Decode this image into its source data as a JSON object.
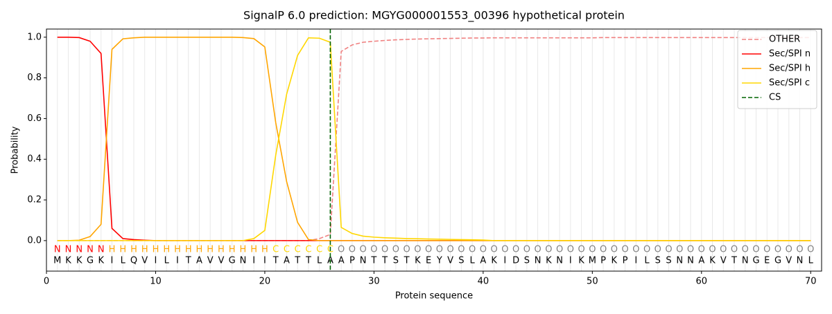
{
  "chart_data": {
    "type": "line",
    "title": "SignalP 6.0 prediction: MGYG000001553_00396 hypothetical protein",
    "xlabel": "Protein sequence",
    "ylabel": "Probability",
    "x": [
      1,
      2,
      3,
      4,
      5,
      6,
      7,
      8,
      9,
      10,
      11,
      12,
      13,
      14,
      15,
      16,
      17,
      18,
      19,
      20,
      21,
      22,
      23,
      24,
      25,
      26,
      27,
      28,
      29,
      30,
      31,
      32,
      33,
      34,
      35,
      36,
      37,
      38,
      39,
      40,
      41,
      42,
      43,
      44,
      45,
      46,
      47,
      48,
      49,
      50,
      51,
      52,
      53,
      54,
      55,
      56,
      57,
      58,
      59,
      60,
      61,
      62,
      63,
      64,
      65,
      66,
      67,
      68,
      69,
      70
    ],
    "residues": [
      "M",
      "K",
      "K",
      "G",
      "K",
      "I",
      "L",
      "Q",
      "V",
      "I",
      "L",
      "I",
      "T",
      "A",
      "V",
      "V",
      "G",
      "N",
      "I",
      "I",
      "T",
      "A",
      "T",
      "T",
      "L",
      "A",
      "A",
      "P",
      "N",
      "T",
      "T",
      "S",
      "T",
      "K",
      "E",
      "Y",
      "V",
      "S",
      "L",
      "A",
      "K",
      "I",
      "D",
      "S",
      "N",
      "K",
      "N",
      "I",
      "K",
      "M",
      "P",
      "K",
      "P",
      "I",
      "L",
      "S",
      "S",
      "N",
      "N",
      "A",
      "K",
      "V",
      "T",
      "N",
      "G",
      "E",
      "G",
      "V",
      "N",
      "L"
    ],
    "labels": [
      "N",
      "N",
      "N",
      "N",
      "N",
      "H",
      "H",
      "H",
      "H",
      "H",
      "H",
      "H",
      "H",
      "H",
      "H",
      "H",
      "H",
      "H",
      "H",
      "H",
      "C",
      "C",
      "C",
      "C",
      "C",
      "C",
      "O",
      "O",
      "O",
      "O",
      "O",
      "O",
      "O",
      "O",
      "O",
      "O",
      "O",
      "O",
      "O",
      "O",
      "O",
      "O",
      "O",
      "O",
      "O",
      "O",
      "O",
      "O",
      "O",
      "O",
      "O",
      "O",
      "O",
      "O",
      "O",
      "O",
      "O",
      "O",
      "O",
      "O",
      "O",
      "O",
      "O",
      "O",
      "O",
      "O",
      "O",
      "O",
      "O",
      "O"
    ],
    "label_colors": {
      "N": "#ff0000",
      "H": "#ffa500",
      "C": "#ffd700",
      "O": "#808080"
    },
    "series": [
      {
        "name": "OTHER",
        "color": "#f08080",
        "dash": true,
        "values": [
          0,
          0,
          0,
          0,
          0,
          0,
          0,
          0,
          0,
          0,
          0,
          0,
          0,
          0,
          0,
          0,
          0,
          0,
          0,
          0,
          0,
          0,
          0,
          0,
          0.01,
          0.03,
          0.93,
          0.962,
          0.975,
          0.98,
          0.984,
          0.987,
          0.989,
          0.991,
          0.992,
          0.993,
          0.994,
          0.995,
          0.996,
          0.996,
          0.997,
          0.997,
          0.997,
          0.997,
          0.997,
          0.997,
          0.997,
          0.997,
          0.997,
          0.997,
          0.998,
          0.998,
          0.998,
          0.998,
          0.998,
          0.998,
          0.998,
          0.998,
          0.998,
          0.998,
          0.998,
          0.998,
          0.998,
          0.998,
          0.998,
          0.998,
          0.998,
          0.998,
          0.998,
          0.998
        ]
      },
      {
        "name": "Sec/SPI n",
        "color": "#ff0000",
        "values": [
          1,
          1,
          0.998,
          0.98,
          0.92,
          0.06,
          0.01,
          0.005,
          0.002,
          0,
          0,
          0,
          0,
          0,
          0,
          0,
          0,
          0,
          0,
          0,
          0,
          0,
          0,
          0,
          0,
          0,
          0,
          0,
          0,
          0,
          0,
          0,
          0,
          0,
          0,
          0,
          0,
          0,
          0,
          0,
          0,
          0,
          0,
          0,
          0,
          0,
          0,
          0,
          0,
          0,
          0,
          0,
          0,
          0,
          0,
          0,
          0,
          0,
          0,
          0,
          0,
          0,
          0,
          0,
          0,
          0,
          0,
          0,
          0,
          0
        ]
      },
      {
        "name": "Sec/SPI h",
        "color": "#ffa500",
        "values": [
          0,
          0,
          0.002,
          0.02,
          0.08,
          0.94,
          0.992,
          0.997,
          1,
          1,
          1,
          1,
          1,
          1,
          1,
          1,
          1,
          0.998,
          0.993,
          0.952,
          0.58,
          0.29,
          0.09,
          0.005,
          0,
          0,
          0,
          0,
          0,
          0,
          0,
          0,
          0,
          0,
          0,
          0,
          0,
          0,
          0,
          0,
          0,
          0,
          0,
          0,
          0,
          0,
          0,
          0,
          0,
          0,
          0,
          0,
          0,
          0,
          0,
          0,
          0,
          0,
          0,
          0,
          0,
          0,
          0,
          0,
          0,
          0,
          0,
          0,
          0,
          0
        ]
      },
      {
        "name": "Sec/SPI c",
        "color": "#ffd700",
        "values": [
          0,
          0,
          0,
          0,
          0,
          0,
          0,
          0,
          0,
          0,
          0,
          0,
          0,
          0,
          0,
          0,
          0,
          0,
          0.01,
          0.05,
          0.42,
          0.72,
          0.91,
          0.997,
          0.995,
          0.975,
          0.065,
          0.035,
          0.022,
          0.017,
          0.014,
          0.012,
          0.01,
          0.009,
          0.008,
          0.007,
          0.006,
          0.005,
          0.004,
          0.003,
          0,
          0,
          0,
          0,
          0,
          0,
          0,
          0,
          0,
          0,
          0,
          0,
          0,
          0,
          0,
          0,
          0,
          0,
          0,
          0,
          0,
          0,
          0,
          0,
          0,
          0,
          0,
          0,
          0,
          0
        ]
      }
    ],
    "cs": {
      "name": "CS",
      "x": 26,
      "color": "#006400"
    },
    "xlim": [
      0,
      71
    ],
    "xticks": [
      0,
      10,
      20,
      30,
      40,
      50,
      60,
      70
    ],
    "ylim": [
      -0.15,
      1.04
    ],
    "yticks": [
      {
        "value": 0,
        "label": "0.0"
      },
      {
        "value": 0.2,
        "label": "0.2"
      },
      {
        "value": 0.4,
        "label": "0.4"
      },
      {
        "value": 0.6,
        "label": "0.6"
      },
      {
        "value": 0.8,
        "label": "0.8"
      },
      {
        "value": 1,
        "label": "1.0"
      }
    ],
    "legend": "upper right"
  }
}
